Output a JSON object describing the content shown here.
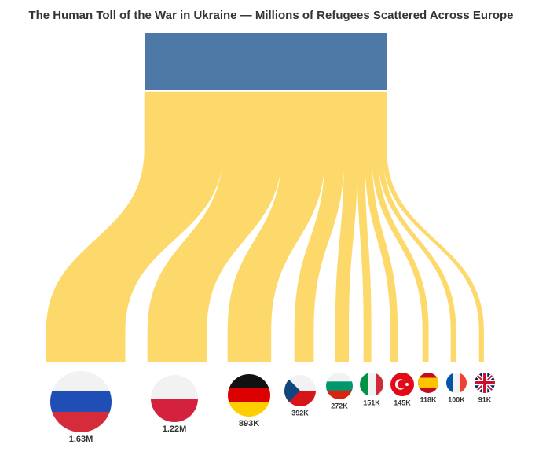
{
  "chart_data": {
    "type": "sankey",
    "title": "The Human Toll of the War in Ukraine —  Millions of Refugees Scattered Across Europe",
    "source_color": "#4e79a7",
    "color": "#fdd96c",
    "values": [
      1630000,
      1220000,
      893000,
      392000,
      272000,
      151000,
      145000,
      118000,
      100000,
      91000
    ],
    "value_labels": [
      "1.63M",
      "1.22M",
      "893K",
      "392K",
      "272K",
      "151K",
      "145K",
      "118K",
      "100K",
      "91K"
    ]
  }
}
